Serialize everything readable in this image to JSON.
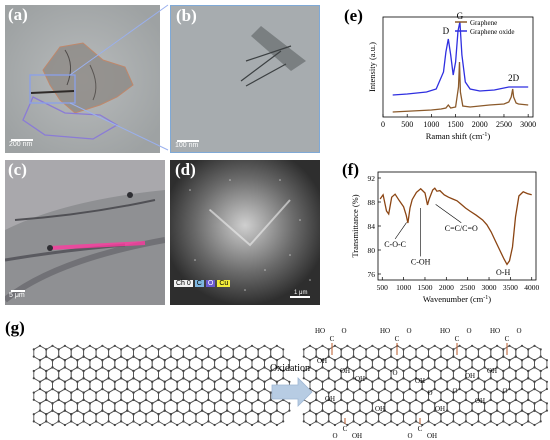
{
  "panels": {
    "a": {
      "label": "(a)",
      "scalebar": "200 nm"
    },
    "b": {
      "label": "(b)",
      "scalebar": "100 nm"
    },
    "c": {
      "label": "(c)",
      "scalebar": "5 μm"
    },
    "d": {
      "label": "(d)",
      "scalebar": "1 μm",
      "legend": [
        {
          "text": "Ch 0",
          "color": "#f2f2f2"
        },
        {
          "text": "C",
          "color": "#7fb7e0"
        },
        {
          "text": "O",
          "color": "#6b5bd1"
        },
        {
          "text": "Cu",
          "color": "#f2ec3a"
        }
      ]
    },
    "e": {
      "label": "(e)"
    },
    "f": {
      "label": "(f)"
    },
    "g": {
      "label": "(g)",
      "arrow_text": "Oxidation"
    }
  },
  "colors": {
    "graphene": "#8b5a2b",
    "graphene_oxide": "#2f2fe0",
    "ftir": "#8b4513",
    "arrow": "#b7cce3",
    "lattice": "#555555",
    "groups": "#b85a2a"
  },
  "chart_data": [
    {
      "type": "line",
      "panel": "e",
      "xlabel": "Raman shift (cm-1)",
      "ylabel": "Intensity (a.u.)",
      "xlim": [
        0,
        3100
      ],
      "xticks": [
        "0",
        "500",
        "1000",
        "1500",
        "2000",
        "2500",
        "3000"
      ],
      "legend_position": "top-right",
      "series": [
        {
          "name": "Graphene",
          "color": "#8b5a2b",
          "x": [
            200,
            600,
            1000,
            1200,
            1300,
            1350,
            1400,
            1500,
            1560,
            1580,
            1600,
            1650,
            1800,
            2200,
            2500,
            2600,
            2650,
            2680,
            2700,
            2750,
            2800,
            3000
          ],
          "y": [
            0.05,
            0.06,
            0.07,
            0.08,
            0.09,
            0.12,
            0.09,
            0.1,
            0.3,
            0.55,
            0.25,
            0.11,
            0.1,
            0.12,
            0.13,
            0.15,
            0.2,
            0.28,
            0.2,
            0.14,
            0.13,
            0.12
          ]
        },
        {
          "name": "Graphene oxide",
          "color": "#2f2fe0",
          "x": [
            200,
            500,
            900,
            1100,
            1250,
            1300,
            1350,
            1400,
            1450,
            1500,
            1550,
            1590,
            1630,
            1700,
            1800,
            2000,
            2300,
            2600,
            2900,
            3000
          ],
          "y": [
            0.22,
            0.23,
            0.25,
            0.28,
            0.45,
            0.65,
            0.78,
            0.62,
            0.42,
            0.55,
            0.86,
            0.95,
            0.62,
            0.35,
            0.28,
            0.26,
            0.27,
            0.3,
            0.3,
            0.3
          ]
        }
      ],
      "annotations": [
        "D",
        "G",
        "2D"
      ]
    },
    {
      "type": "line",
      "panel": "f",
      "xlabel": "Wavenumber (cm-1)",
      "ylabel": "Transmittance (%)",
      "xlim": [
        400,
        4100
      ],
      "ylim": [
        75,
        93
      ],
      "xticks": [
        "500",
        "1000",
        "1500",
        "2000",
        "2500",
        "3000",
        "3500",
        "4000"
      ],
      "yticks": [
        "76",
        "80",
        "84",
        "88",
        "92"
      ],
      "series": [
        {
          "name": "",
          "color": "#8b4513",
          "x": [
            450,
            520,
            600,
            650,
            720,
            800,
            900,
            1000,
            1060,
            1100,
            1150,
            1200,
            1300,
            1400,
            1500,
            1560,
            1600,
            1680,
            1730,
            1780,
            1850,
            1950,
            2050,
            2150,
            2250,
            2350,
            2450,
            2550,
            2700,
            2850,
            2950,
            3050,
            3150,
            3250,
            3350,
            3420,
            3480,
            3550,
            3620,
            3700,
            3800,
            3900,
            4000
          ],
          "y": [
            88.5,
            89.2,
            86.5,
            86.0,
            88.8,
            89.3,
            88.2,
            87.2,
            85.8,
            84.5,
            87.0,
            88.4,
            89.6,
            90.2,
            89.5,
            87.5,
            88.5,
            90.0,
            90.3,
            89.8,
            89.9,
            89.2,
            88.8,
            88.5,
            88.2,
            87.6,
            87.0,
            86.5,
            85.8,
            85.0,
            84.2,
            83.0,
            81.5,
            80.0,
            78.5,
            77.6,
            78.2,
            80.5,
            85.5,
            89.0,
            89.7,
            89.4,
            89.2
          ]
        }
      ],
      "annotations": [
        "C-O-C",
        "C-OH",
        "C=C/C=O",
        "O-H"
      ]
    }
  ],
  "scheme": {
    "left_lattice": "graphene",
    "right_lattice": "graphene oxide",
    "groups": {
      "carboxyl_top": "HO-C=O",
      "carboxyl_bottom": "C=O-OH",
      "hydroxyl": "OH",
      "epoxy": "O"
    }
  }
}
